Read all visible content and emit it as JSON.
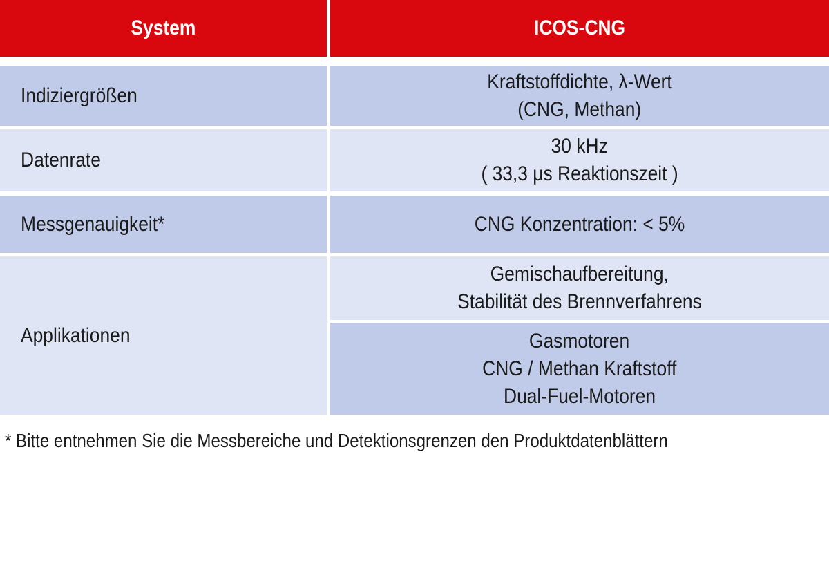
{
  "header": {
    "col1": "System",
    "col2": "ICOS-CNG"
  },
  "rows": {
    "indizier": {
      "label": "Indiziergrößen",
      "line1": "Kraftstoffdichte, λ-Wert",
      "line2": "(CNG, Methan)"
    },
    "datenrate": {
      "label": "Datenrate",
      "line1": "30 kHz",
      "line2": "( 33,3 μs Reaktionszeit )"
    },
    "genauigkeit": {
      "label": "Messgenauigkeit*",
      "line1": "CNG Konzentration:  < 5%"
    },
    "applikationen": {
      "label": "Applikationen",
      "app1_line1": "Gemischaufbereitung,",
      "app1_line2": "Stabilität des Brennverfahrens",
      "app2_line1": "Gasmotoren",
      "app2_line2": "CNG / Methan Kraftstoff",
      "app2_line3": "Dual-Fuel-Motoren"
    }
  },
  "footnote": "* Bitte entnehmen Sie die Messbereiche und Detektionsgrenzen den Produktdatenblättern",
  "colors": {
    "header": "#d9080f",
    "row_dark": "#c0cbea",
    "row_light": "#dfe5f5"
  }
}
